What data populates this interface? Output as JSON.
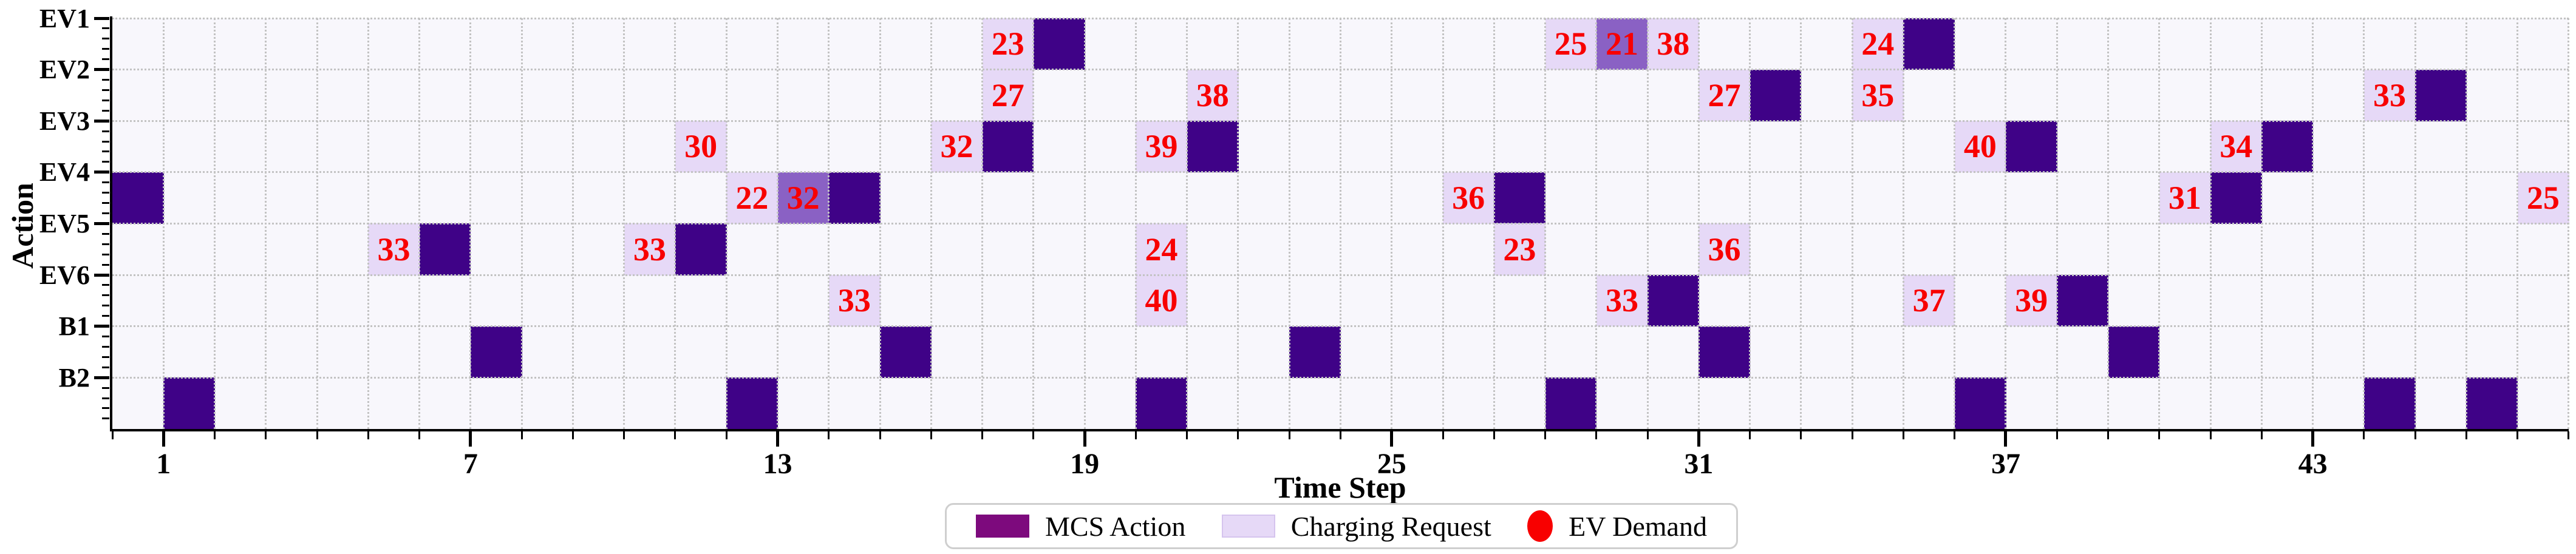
{
  "chart_data": {
    "type": "heatmap",
    "xlabel": "Time Step",
    "ylabel": "Action",
    "rows": [
      "EV1",
      "EV2",
      "EV3",
      "EV4",
      "EV5",
      "EV6",
      "B1",
      "B2"
    ],
    "n_time_steps": 48,
    "x_range": [
      0,
      48
    ],
    "x_major_ticks": [
      1,
      7,
      13,
      19,
      25,
      31,
      37,
      43
    ],
    "grid": "dotted, every time step and every row boundary",
    "legend_position": "bottom center",
    "legend": [
      {
        "label": "MCS Action",
        "marker": "square",
        "color": "#7D0A7D"
      },
      {
        "label": "Charging Request",
        "marker": "square",
        "color": "#E6D9F7"
      },
      {
        "label": "EV Demand",
        "marker": "ellipse",
        "color": "#F80000"
      }
    ],
    "colors": {
      "action": "#3F0287",
      "request": "#E6D9F7",
      "overlap": "#8A61C4",
      "demand_text": "#F80000",
      "plot_bg": "#F8F7FC",
      "grid": "#C3C3C3",
      "legend_mcs": "#7D0A7D"
    },
    "cells": [
      {
        "row": "EV1",
        "t": 18,
        "kind": "request",
        "demand": 23
      },
      {
        "row": "EV1",
        "t": 19,
        "kind": "action"
      },
      {
        "row": "EV1",
        "t": 29,
        "kind": "request",
        "demand": 25
      },
      {
        "row": "EV1",
        "t": 30,
        "kind": "both",
        "demand": 21
      },
      {
        "row": "EV1",
        "t": 31,
        "kind": "request",
        "demand": 38
      },
      {
        "row": "EV1",
        "t": 35,
        "kind": "request",
        "demand": 24
      },
      {
        "row": "EV1",
        "t": 36,
        "kind": "action"
      },
      {
        "row": "EV2",
        "t": 18,
        "kind": "request",
        "demand": 27
      },
      {
        "row": "EV2",
        "t": 22,
        "kind": "request",
        "demand": 38
      },
      {
        "row": "EV2",
        "t": 32,
        "kind": "request",
        "demand": 27
      },
      {
        "row": "EV2",
        "t": 33,
        "kind": "action"
      },
      {
        "row": "EV2",
        "t": 35,
        "kind": "request",
        "demand": 35
      },
      {
        "row": "EV2",
        "t": 45,
        "kind": "request",
        "demand": 33
      },
      {
        "row": "EV2",
        "t": 46,
        "kind": "action"
      },
      {
        "row": "EV3",
        "t": 12,
        "kind": "request",
        "demand": 30
      },
      {
        "row": "EV3",
        "t": 17,
        "kind": "request",
        "demand": 32
      },
      {
        "row": "EV3",
        "t": 18,
        "kind": "action"
      },
      {
        "row": "EV3",
        "t": 21,
        "kind": "request",
        "demand": 39
      },
      {
        "row": "EV3",
        "t": 22,
        "kind": "action"
      },
      {
        "row": "EV3",
        "t": 37,
        "kind": "request",
        "demand": 40
      },
      {
        "row": "EV3",
        "t": 38,
        "kind": "action"
      },
      {
        "row": "EV3",
        "t": 42,
        "kind": "request",
        "demand": 34
      },
      {
        "row": "EV3",
        "t": 43,
        "kind": "action"
      },
      {
        "row": "EV4",
        "t": 1,
        "kind": "action"
      },
      {
        "row": "EV4",
        "t": 13,
        "kind": "request",
        "demand": 22
      },
      {
        "row": "EV4",
        "t": 14,
        "kind": "both",
        "demand": 32
      },
      {
        "row": "EV4",
        "t": 15,
        "kind": "action"
      },
      {
        "row": "EV4",
        "t": 27,
        "kind": "request",
        "demand": 36
      },
      {
        "row": "EV4",
        "t": 28,
        "kind": "action"
      },
      {
        "row": "EV4",
        "t": 41,
        "kind": "request",
        "demand": 31
      },
      {
        "row": "EV4",
        "t": 42,
        "kind": "action"
      },
      {
        "row": "EV4",
        "t": 48,
        "kind": "request",
        "demand": 25
      },
      {
        "row": "EV5",
        "t": 6,
        "kind": "request",
        "demand": 33
      },
      {
        "row": "EV5",
        "t": 7,
        "kind": "action"
      },
      {
        "row": "EV5",
        "t": 11,
        "kind": "request",
        "demand": 33
      },
      {
        "row": "EV5",
        "t": 12,
        "kind": "action"
      },
      {
        "row": "EV5",
        "t": 21,
        "kind": "request",
        "demand": 24
      },
      {
        "row": "EV5",
        "t": 28,
        "kind": "request",
        "demand": 23
      },
      {
        "row": "EV5",
        "t": 32,
        "kind": "request",
        "demand": 36
      },
      {
        "row": "EV6",
        "t": 15,
        "kind": "request",
        "demand": 33
      },
      {
        "row": "EV6",
        "t": 21,
        "kind": "request",
        "demand": 40
      },
      {
        "row": "EV6",
        "t": 30,
        "kind": "request",
        "demand": 33
      },
      {
        "row": "EV6",
        "t": 31,
        "kind": "action"
      },
      {
        "row": "EV6",
        "t": 36,
        "kind": "request",
        "demand": 37
      },
      {
        "row": "EV6",
        "t": 38,
        "kind": "request",
        "demand": 39
      },
      {
        "row": "EV6",
        "t": 39,
        "kind": "action"
      },
      {
        "row": "B1",
        "t": 8,
        "kind": "action"
      },
      {
        "row": "B1",
        "t": 16,
        "kind": "action"
      },
      {
        "row": "B1",
        "t": 24,
        "kind": "action"
      },
      {
        "row": "B1",
        "t": 32,
        "kind": "action"
      },
      {
        "row": "B1",
        "t": 40,
        "kind": "action"
      },
      {
        "row": "B2",
        "t": 2,
        "kind": "action"
      },
      {
        "row": "B2",
        "t": 13,
        "kind": "action"
      },
      {
        "row": "B2",
        "t": 21,
        "kind": "action"
      },
      {
        "row": "B2",
        "t": 29,
        "kind": "action"
      },
      {
        "row": "B2",
        "t": 37,
        "kind": "action"
      },
      {
        "row": "B2",
        "t": 45,
        "kind": "action"
      },
      {
        "row": "B2",
        "t": 47,
        "kind": "action"
      }
    ]
  }
}
